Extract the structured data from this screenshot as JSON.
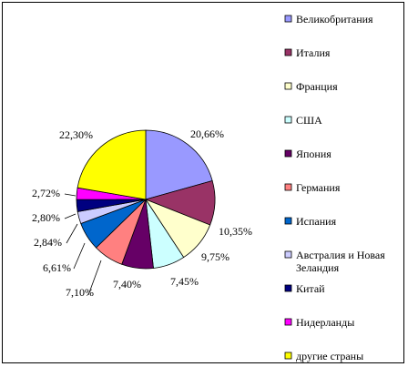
{
  "chart_data": {
    "type": "pie",
    "title": "",
    "start_angle_deg": 0,
    "direction": "clockwise",
    "slices": [
      {
        "label": "Великобритания",
        "value": 20.66,
        "value_label": "20,66%",
        "color": "#9999ff"
      },
      {
        "label": "Италия",
        "value": 10.35,
        "value_label": "10,35%",
        "color": "#993366"
      },
      {
        "label": "Франция",
        "value": 9.75,
        "value_label": "9,75%",
        "color": "#ffffcc"
      },
      {
        "label": "США",
        "value": 7.45,
        "value_label": "7,45%",
        "color": "#ccffff"
      },
      {
        "label": "Япония",
        "value": 7.4,
        "value_label": "7,40%",
        "color": "#660066"
      },
      {
        "label": "Германия",
        "value": 7.1,
        "value_label": "7,10%",
        "color": "#ff8080"
      },
      {
        "label": "Испания",
        "value": 6.61,
        "value_label": "6,61%",
        "color": "#0066cc"
      },
      {
        "label": [
          "Австралия и Новая",
          "Зеландия"
        ],
        "value": 2.84,
        "value_label": "2,84%",
        "color": "#ccccff"
      },
      {
        "label": "Китай",
        "value": 2.8,
        "value_label": "2,80%",
        "color": "#000080"
      },
      {
        "label": "Нидерланды",
        "value": 2.72,
        "value_label": "2,72%",
        "color": "#ff00ff"
      },
      {
        "label": "другие страны",
        "value": 22.3,
        "value_label": "22,30%",
        "color": "#ffff00"
      }
    ],
    "legend_position": "right"
  }
}
